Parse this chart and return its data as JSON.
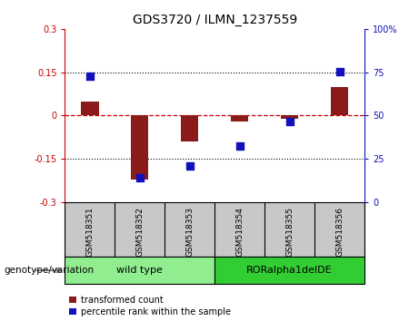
{
  "title": "GDS3720 / ILMN_1237559",
  "samples": [
    "GSM518351",
    "GSM518352",
    "GSM518353",
    "GSM518354",
    "GSM518355",
    "GSM518356"
  ],
  "red_bars": [
    0.05,
    -0.22,
    -0.09,
    -0.02,
    -0.01,
    0.1
  ],
  "blue_dots_left": [
    0.135,
    -0.215,
    -0.175,
    -0.105,
    -0.02,
    0.152
  ],
  "ylim_left": [
    -0.3,
    0.3
  ],
  "ylim_right": [
    0,
    100
  ],
  "yticks_left": [
    -0.3,
    -0.15,
    0.0,
    0.15,
    0.3
  ],
  "yticks_right": [
    0,
    25,
    50,
    75,
    100
  ],
  "yticklabels_left": [
    "-0.3",
    "-0.15",
    "0",
    "0.15",
    "0.3"
  ],
  "yticklabels_right": [
    "0",
    "25",
    "50",
    "75",
    "100%"
  ],
  "dotted_hlines": [
    0.15,
    -0.15
  ],
  "dashed_hline": 0.0,
  "bar_color": "#8B1A1A",
  "dot_color": "#1111BB",
  "zero_line_color": "#CC0000",
  "hline_color": "black",
  "genotype_label": "genotype/variation",
  "groups": [
    {
      "label": "wild type",
      "color": "#90EE90",
      "start": 0,
      "end": 2
    },
    {
      "label": "RORalpha1delDE",
      "color": "#32CD32",
      "start": 3,
      "end": 5
    }
  ],
  "legend_red": "transformed count",
  "legend_blue": "percentile rank within the sample",
  "bar_width": 0.35,
  "dot_size": 40
}
